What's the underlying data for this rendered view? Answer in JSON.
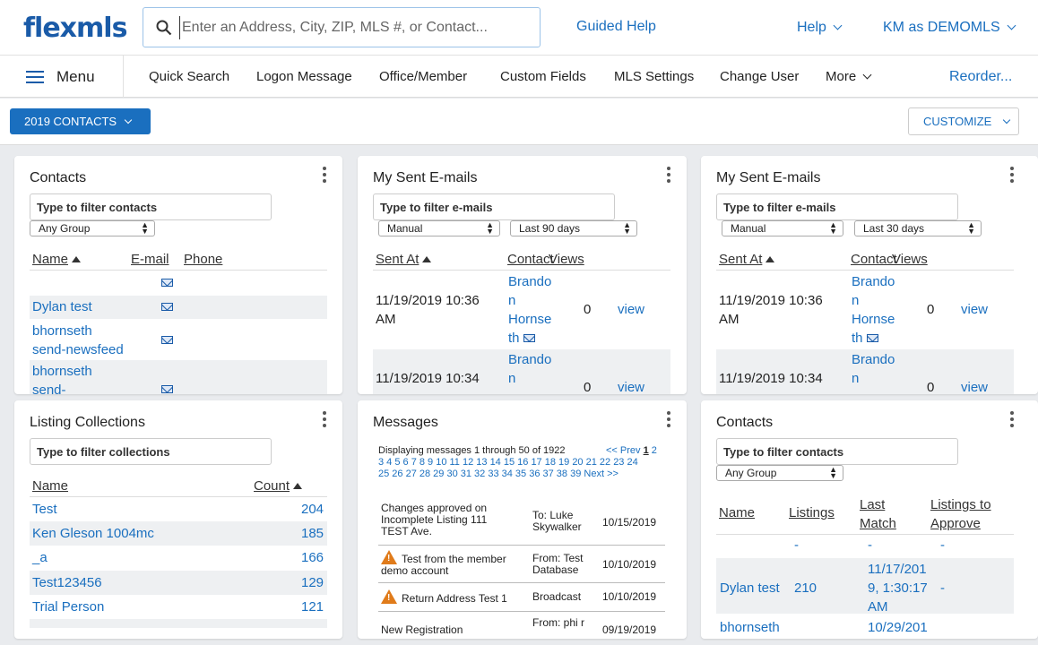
{
  "header": {
    "logo": "flexmls",
    "search_placeholder": "Enter an Address, City, ZIP, MLS #, or Contact...",
    "guided_help": "Guided Help",
    "help": "Help",
    "user": "KM as DEMOMLS"
  },
  "nav": {
    "menu": "Menu",
    "items": [
      "Quick Search",
      "Logon Message",
      "Office/Member",
      "Custom Fields",
      "MLS Settings",
      "Change User",
      "More"
    ],
    "reorder": "Reorder..."
  },
  "subbar": {
    "view": "2019 CONTACTS",
    "customize": "CUSTOMIZE"
  },
  "contacts1": {
    "title": "Contacts",
    "filter_placeholder": "Type to filter contacts",
    "group": "Any Group",
    "headers": {
      "name": "Name",
      "email": "E-mail",
      "phone": "Phone"
    },
    "rows": [
      {
        "name": ""
      },
      {
        "name": "Dylan test"
      },
      {
        "name_l1": "bhornseth",
        "name_l2": "send-newsfeed"
      },
      {
        "name_l1": "bhornseth",
        "name_l2": "send-"
      }
    ]
  },
  "sent1": {
    "title": "My Sent E-mails",
    "filter_placeholder": "Type to filter e-mails",
    "type": "Manual",
    "period": "Last 90 days",
    "headers": {
      "sent": "Sent At",
      "contact": "Contact",
      "views": "Views"
    },
    "rows": [
      {
        "date_l1": "11/19/2019 10:36",
        "date_l2": "AM",
        "c1": "Brando",
        "c2": "n",
        "c3": "Hornse",
        "c4": "th",
        "views": "0",
        "action": "view"
      },
      {
        "date_l1": "11/19/2019 10:34",
        "c1": "Brando",
        "c2": "n",
        "views": "0",
        "action": "view"
      }
    ]
  },
  "sent2": {
    "title": "My Sent E-mails",
    "filter_placeholder": "Type to filter e-mails",
    "type": "Manual",
    "period": "Last 30 days",
    "headers": {
      "sent": "Sent At",
      "contact": "Contact",
      "views": "Views"
    },
    "rows": [
      {
        "date_l1": "11/19/2019 10:36",
        "date_l2": "AM",
        "c1": "Brando",
        "c2": "n",
        "c3": "Hornse",
        "c4": "th",
        "views": "0",
        "action": "view"
      },
      {
        "date_l1": "11/19/2019 10:34",
        "c1": "Brando",
        "c2": "n",
        "views": "0",
        "action": "view"
      }
    ]
  },
  "collections": {
    "title": "Listing Collections",
    "filter_placeholder": "Type to filter collections",
    "headers": {
      "name": "Name",
      "count": "Count"
    },
    "rows": [
      {
        "name": "Test",
        "count": "204"
      },
      {
        "name": "Ken Gleson 1004mc",
        "count": "185"
      },
      {
        "name": "_a",
        "count": "166"
      },
      {
        "name": "Test123456",
        "count": "129"
      },
      {
        "name": "Trial Person",
        "count": "121"
      }
    ]
  },
  "messages": {
    "title": "Messages",
    "displaying": "Displaying messages 1 through 50 of 1922",
    "prev": "<< Prev",
    "current": "1",
    "pages_l1": "2",
    "pages_l2": "3 4 5 6 7 8 9 10 11 12 13 14 15 16 17 18 19 20 21 22 23 24",
    "pages_l3": "25 26 27 28 29 30 31 32 33 34 35 36 37 38 39",
    "next": "Next >>",
    "rows": [
      {
        "subj_l1": "Changes approved on",
        "subj_l2": "Incomplete Listing 111",
        "subj_l3": "TEST Ave.",
        "to_l1": "To: Luke",
        "to_l2": "Skywalker",
        "date": "10/15/2019"
      },
      {
        "subj_l1": "Test from the member",
        "subj_l2": "demo account",
        "to_l1": "From: Test",
        "to_l2": "Database",
        "date": "10/10/2019"
      },
      {
        "subj_l1": "Return Address Test 1",
        "to_l1": "Broadcast",
        "date": "10/10/2019"
      },
      {
        "subj_l1": "New Registration",
        "to_l1": "From: phi r",
        "date": "09/19/2019"
      }
    ]
  },
  "contacts2": {
    "title": "Contacts",
    "filter_placeholder": "Type to filter contacts",
    "group": "Any Group",
    "headers": {
      "name": "Name",
      "listings": "Listings",
      "last_l1": "Last",
      "last_l2": "Match",
      "approve_l1": "Listings to",
      "approve_l2": "Approve"
    },
    "rows": [
      {
        "listings": "-",
        "last": "-",
        "approve": "-"
      },
      {
        "name": "Dylan test",
        "listings": "210",
        "last_l1": "11/17/201",
        "last_l2": "9, 1:30:17",
        "last_l3": "AM",
        "approve": "-"
      },
      {
        "name": "bhornseth",
        "last_l1": "10/29/201"
      }
    ]
  }
}
